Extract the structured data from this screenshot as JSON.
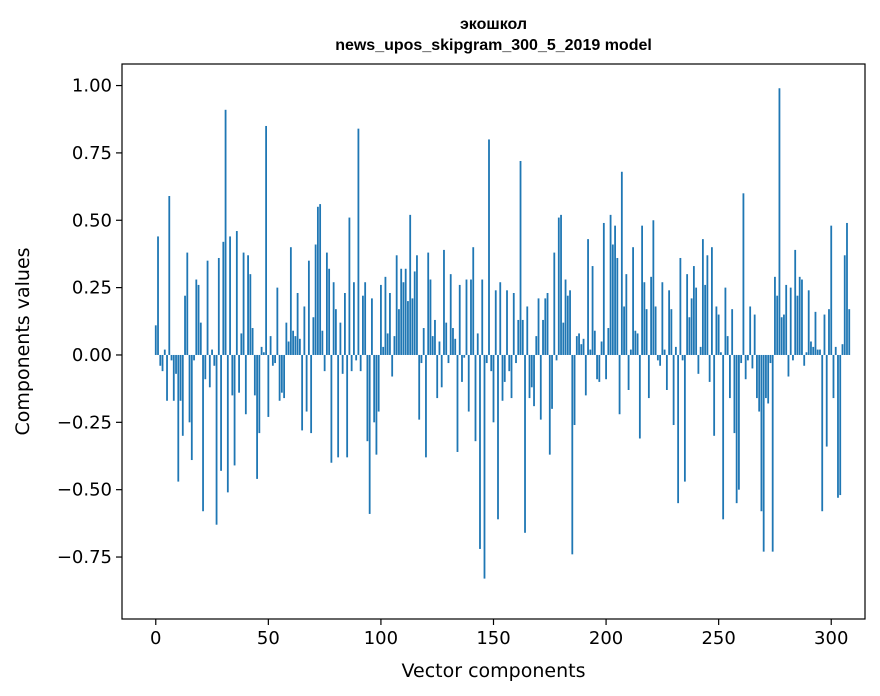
{
  "chart_data": {
    "type": "bar",
    "title": "экошкол",
    "subtitle": "news_upos_skipgram_300_5_2019 model",
    "xlabel": "Vector components",
    "ylabel": "Components values",
    "xlim": [
      -15,
      315
    ],
    "ylim": [
      -0.98,
      1.08
    ],
    "xticks": [
      0,
      50,
      100,
      150,
      200,
      250,
      300
    ],
    "yticks": [
      -0.75,
      -0.5,
      -0.25,
      0.0,
      0.25,
      0.5,
      0.75,
      1.0
    ],
    "ytick_labels": [
      "−0.75",
      "−0.50",
      "−0.25",
      "0.00",
      "0.25",
      "0.50",
      "0.75",
      "1.00"
    ],
    "color": "#1f77b4",
    "values": [
      0.11,
      0.44,
      -0.04,
      -0.06,
      0.02,
      -0.17,
      0.59,
      -0.02,
      -0.17,
      -0.07,
      -0.47,
      -0.17,
      -0.3,
      0.22,
      0.38,
      -0.25,
      -0.39,
      -0.02,
      0.28,
      0.26,
      0.12,
      -0.58,
      -0.09,
      0.35,
      -0.12,
      0.02,
      -0.04,
      -0.63,
      0.36,
      -0.43,
      0.42,
      0.91,
      -0.51,
      0.44,
      -0.15,
      -0.41,
      0.46,
      -0.14,
      0.08,
      0.38,
      -0.22,
      0.37,
      0.3,
      0.1,
      -0.15,
      -0.46,
      -0.29,
      0.03,
      0.01,
      0.85,
      -0.23,
      0.07,
      -0.04,
      -0.03,
      0.25,
      -0.17,
      -0.14,
      -0.16,
      0.12,
      0.05,
      0.4,
      0.09,
      0.07,
      0.23,
      0.06,
      -0.28,
      0.18,
      -0.21,
      0.35,
      -0.29,
      0.14,
      0.41,
      0.55,
      0.56,
      0.09,
      -0.06,
      0.38,
      0.32,
      -0.4,
      0.27,
      0.17,
      -0.38,
      0.12,
      -0.07,
      0.23,
      -0.38,
      0.51,
      -0.06,
      0.27,
      -0.02,
      0.84,
      -0.06,
      0.22,
      0.27,
      -0.32,
      -0.59,
      0.21,
      -0.25,
      -0.37,
      -0.21,
      0.26,
      0.03,
      0.29,
      0.08,
      0.23,
      -0.08,
      0.07,
      0.37,
      0.17,
      0.32,
      0.27,
      0.32,
      0.2,
      0.52,
      0.21,
      0.31,
      0.37,
      -0.24,
      -0.03,
      0.1,
      -0.38,
      0.38,
      0.28,
      0.07,
      0.13,
      -0.16,
      0.05,
      -0.12,
      0.39,
      0.12,
      -0.03,
      0.3,
      0.1,
      0.06,
      -0.36,
      0.26,
      -0.1,
      -0.01,
      0.28,
      -0.21,
      0.28,
      0.4,
      -0.32,
      0.08,
      -0.72,
      0.28,
      -0.83,
      -0.03,
      0.8,
      -0.06,
      -0.25,
      0.24,
      -0.61,
      0.27,
      -0.17,
      -0.1,
      0.24,
      -0.06,
      -0.16,
      0.23,
      -0.03,
      0.13,
      0.72,
      0.13,
      -0.66,
      0.18,
      -0.16,
      -0.12,
      -0.19,
      0.07,
      0.21,
      -0.24,
      0.13,
      0.21,
      0.23,
      -0.37,
      -0.2,
      0.38,
      -0.02,
      0.51,
      0.52,
      0.12,
      0.28,
      0.22,
      0.24,
      -0.74,
      -0.26,
      0.07,
      0.08,
      0.04,
      0.06,
      -0.15,
      0.43,
      0.02,
      0.33,
      0.09,
      -0.09,
      -0.1,
      0.05,
      0.49,
      -0.09,
      0.1,
      0.52,
      0.41,
      0.48,
      0.36,
      -0.22,
      0.68,
      0.18,
      0.3,
      -0.13,
      0.02,
      0.4,
      0.09,
      0.08,
      -0.31,
      0.48,
      0.27,
      0.17,
      -0.16,
      0.29,
      0.5,
      0.18,
      -0.02,
      -0.04,
      0.27,
      0.02,
      -0.13,
      0.24,
      0.17,
      -0.26,
      0.03,
      -0.55,
      0.36,
      -0.02,
      -0.47,
      0.3,
      0.14,
      0.21,
      0.33,
      0.25,
      -0.07,
      0.03,
      0.43,
      0.26,
      0.37,
      -0.1,
      0.4,
      -0.3,
      0.18,
      0.15,
      0.01,
      -0.61,
      0.25,
      0.07,
      -0.16,
      0.17,
      -0.29,
      -0.55,
      -0.5,
      -0.03,
      0.6,
      -0.09,
      -0.02,
      0.18,
      -0.05,
      0.15,
      -0.16,
      -0.21,
      -0.58,
      -0.73,
      -0.16,
      -0.18,
      -0.03,
      -0.73,
      0.29,
      0.22,
      0.99,
      0.14,
      0.15,
      0.26,
      -0.08,
      0.25,
      -0.02,
      0.39,
      0.22,
      0.29,
      0.28,
      -0.04,
      0.01,
      0.24,
      0.05,
      0.03,
      0.16,
      0.02,
      0.02,
      -0.58,
      0.15,
      -0.34,
      0.17,
      0.48,
      -0.16,
      0.03,
      -0.53,
      -0.52,
      0.04,
      0.37,
      0.49,
      0.17
    ]
  }
}
